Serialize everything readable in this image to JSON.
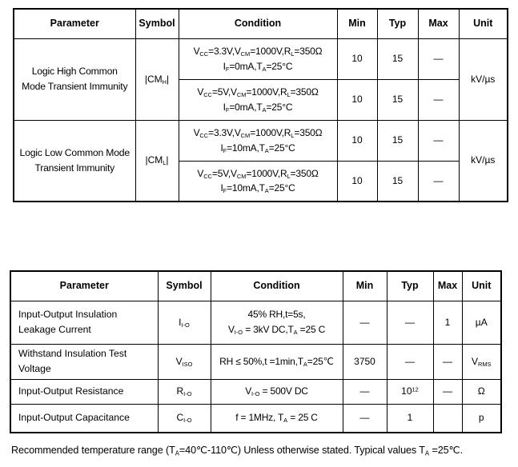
{
  "table1": {
    "headers": [
      "Parameter",
      "Symbol",
      "Condition",
      "Min",
      "Typ",
      "Max",
      "Unit"
    ],
    "groups": [
      {
        "parameter": "Logic High Common\nMode Transient Immunity",
        "symbol": "|CM~H~|",
        "unit": "kV/µs",
        "rows": [
          {
            "condition": "V~CC~=3.3V,V~CM~=1000V,R~L~=350Ω\nI~F~=0mA,T~A~=25°C",
            "min": "10",
            "typ": "15",
            "max": "—"
          },
          {
            "condition": "V~CC~=5V,V~CM~=1000V,R~L~=350Ω\nI~F~=0mA,T~A~=25°C",
            "min": "10",
            "typ": "15",
            "max": "—"
          }
        ]
      },
      {
        "parameter": "Logic Low Common Mode\nTransient Immunity",
        "symbol": "|CM~L~|",
        "unit": "kV/µs",
        "rows": [
          {
            "condition": "V~CC~=3.3V,V~CM~=1000V,R~L~=350Ω\nI~F~=10mA,T~A~=25°C",
            "min": "10",
            "typ": "15",
            "max": "—"
          },
          {
            "condition": "V~CC~=5V,V~CM~=1000V,R~L~=350Ω\nI~F~=10mA,T~A~=25°C",
            "min": "10",
            "typ": "15",
            "max": "—"
          }
        ]
      }
    ]
  },
  "table2": {
    "headers": [
      "Parameter",
      "Symbol",
      "Condition",
      "Min",
      "Typ",
      "Max",
      "Unit"
    ],
    "rows": [
      {
        "parameter": "Input-Output Insulation\nLeakage   Current",
        "symbol": "I~I-O~",
        "condition": "45% RH,t=5s,\nV~I-O~ = 3kV DC,T~A~ =25 C",
        "min": "—",
        "typ": "—",
        "max": "1",
        "unit": "µA"
      },
      {
        "parameter": "Withstand Insulation Test\nVoltage",
        "symbol": "V~ISO~",
        "condition": "RH ≤ 50%,t =1min,T~A~=25℃",
        "min": "3750",
        "typ": "—",
        "max": "—",
        "unit": "V~RMS~"
      },
      {
        "parameter": "Input-Output Resistance",
        "symbol": "R~I-O~",
        "condition": "V~I-O~ = 500V DC",
        "min": "—",
        "typ": "10^12^",
        "max": "—",
        "unit": "Ω"
      },
      {
        "parameter": "Input-Output Capacitance",
        "symbol": "C~I-O~",
        "condition": "f = 1MHz, T~A~ = 25 C",
        "min": "—",
        "typ": "1",
        "max": "",
        "unit": "p"
      }
    ]
  },
  "footnote": "Recommended temperature range (T~A~=40℃-110℃) Unless otherwise stated. Typical values T~A~ =25℃."
}
